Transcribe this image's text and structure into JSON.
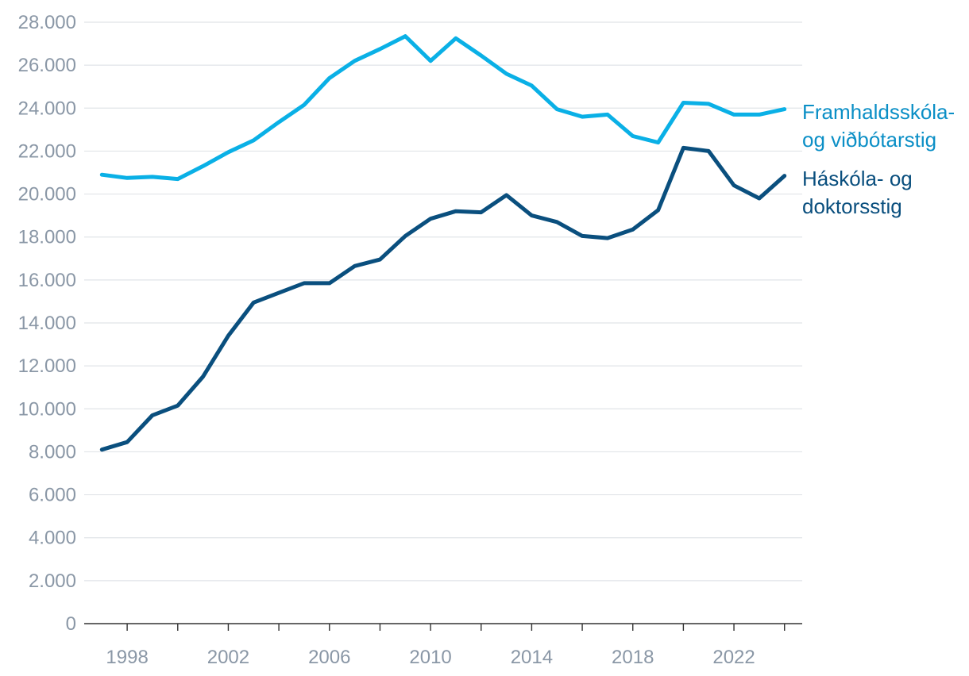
{
  "chart_data": {
    "type": "line",
    "title": "",
    "xlabel": "",
    "ylabel": "",
    "x": [
      1997,
      1998,
      1999,
      2000,
      2001,
      2002,
      2003,
      2004,
      2005,
      2006,
      2007,
      2008,
      2009,
      2010,
      2011,
      2012,
      2013,
      2014,
      2015,
      2016,
      2017,
      2018,
      2019,
      2020,
      2021,
      2022,
      2023,
      2024
    ],
    "xlim": [
      1996.3,
      2024.7
    ],
    "ylim": [
      0,
      28000
    ],
    "x_ticks": [
      1998,
      2002,
      2006,
      2010,
      2014,
      2018,
      2022
    ],
    "x_tick_labels": [
      "1998",
      "2002",
      "2006",
      "2010",
      "2014",
      "2018",
      "2022"
    ],
    "y_ticks": [
      0,
      2000,
      4000,
      6000,
      8000,
      10000,
      12000,
      14000,
      16000,
      18000,
      20000,
      22000,
      24000,
      26000,
      28000
    ],
    "y_tick_labels": [
      "0",
      "2.000",
      "4.000",
      "6.000",
      "8.000",
      "10.000",
      "12.000",
      "14.000",
      "16.000",
      "18.000",
      "20.000",
      "22.000",
      "24.000",
      "26.000",
      "28.000"
    ],
    "grid": true,
    "legend": "direct labels at right end of lines",
    "series": [
      {
        "key": "upper",
        "label_lines": [
          "Framhaldsskóla-",
          "og viðbótarstig"
        ],
        "color": "#0ab0e6",
        "label_color": "#0b8fc6",
        "values": [
          20900,
          20750,
          20800,
          20700,
          21300,
          21950,
          22500,
          23350,
          24150,
          25400,
          26200,
          26750,
          27350,
          26200,
          27250,
          26450,
          25600,
          25050,
          23950,
          23600,
          23700,
          22700,
          22400,
          24250,
          24200,
          23700,
          23700,
          23950
        ]
      },
      {
        "key": "lower",
        "label_lines": [
          "Háskóla- og",
          "doktorsstig"
        ],
        "color": "#0a4f7e",
        "label_color": "#0a4f7e",
        "values": [
          8100,
          8450,
          9700,
          10150,
          11500,
          13400,
          14950,
          15400,
          15850,
          15850,
          16650,
          16950,
          18050,
          18850,
          19200,
          19150,
          19950,
          19000,
          18700,
          18050,
          17950,
          18350,
          19250,
          22150,
          22000,
          20400,
          19800,
          20850
        ]
      }
    ]
  }
}
